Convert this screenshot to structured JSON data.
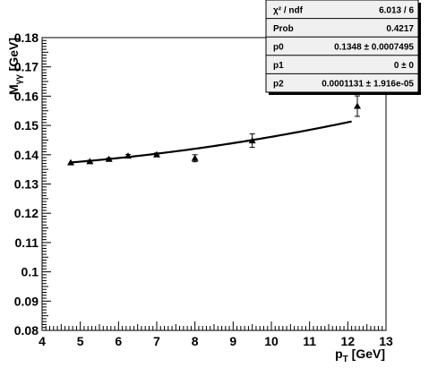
{
  "chart_data": {
    "type": "scatter",
    "title": "",
    "xlabel": "p",
    "xlabel_sub": "T",
    "xlabel_unit": " [GeV]",
    "ylabel": "M",
    "ylabel_sub": "γγ",
    "ylabel_unit": " [GeV]",
    "xlim": [
      4,
      13
    ],
    "ylim": [
      0.08,
      0.18
    ],
    "x_ticks": [
      4,
      5,
      6,
      7,
      8,
      9,
      10,
      11,
      12,
      13
    ],
    "x_tick_labels": [
      "4",
      "5",
      "6",
      "7",
      "8",
      "9",
      "10",
      "11",
      "12",
      "13"
    ],
    "y_ticks": [
      0.08,
      0.09,
      0.1,
      0.11,
      0.12,
      0.13,
      0.14,
      0.15,
      0.16,
      0.17,
      0.18
    ],
    "y_tick_labels": [
      "0.08",
      "0.09",
      "0.1",
      "0.11",
      "0.12",
      "0.13",
      "0.14",
      "0.15",
      "0.16",
      "0.17",
      "0.18"
    ],
    "grid": false,
    "points": [
      {
        "x": 4.75,
        "y": 0.1373,
        "yerr": 0.0003
      },
      {
        "x": 5.25,
        "y": 0.1377,
        "yerr": 0.0004
      },
      {
        "x": 5.75,
        "y": 0.1385,
        "yerr": 0.0004
      },
      {
        "x": 6.25,
        "y": 0.1396,
        "yerr": 0.0005
      },
      {
        "x": 7.0,
        "y": 0.14,
        "yerr": 0.0006
      },
      {
        "x": 8.0,
        "y": 0.1388,
        "yerr": 0.0012
      },
      {
        "x": 9.5,
        "y": 0.1448,
        "yerr": 0.0023
      },
      {
        "x": 12.25,
        "y": 0.1566,
        "yerr": 0.0035
      }
    ],
    "fit": {
      "function": "p0 + p2*x^2",
      "p0": 0.1348,
      "p1": 0,
      "p2": 0.0001131,
      "x_range": [
        4.75,
        12.1
      ]
    }
  },
  "stats_box": {
    "rows": [
      {
        "label": "χ² / ndf",
        "value": "6.013 / 6"
      },
      {
        "label": "Prob",
        "value": "0.4217"
      },
      {
        "label": "p0",
        "value": "0.1348 ± 0.0007495"
      },
      {
        "label": "p1",
        "value": "0 ±     0"
      },
      {
        "label": "p2",
        "value": "0.0001131 ± 1.916e-05"
      }
    ]
  }
}
